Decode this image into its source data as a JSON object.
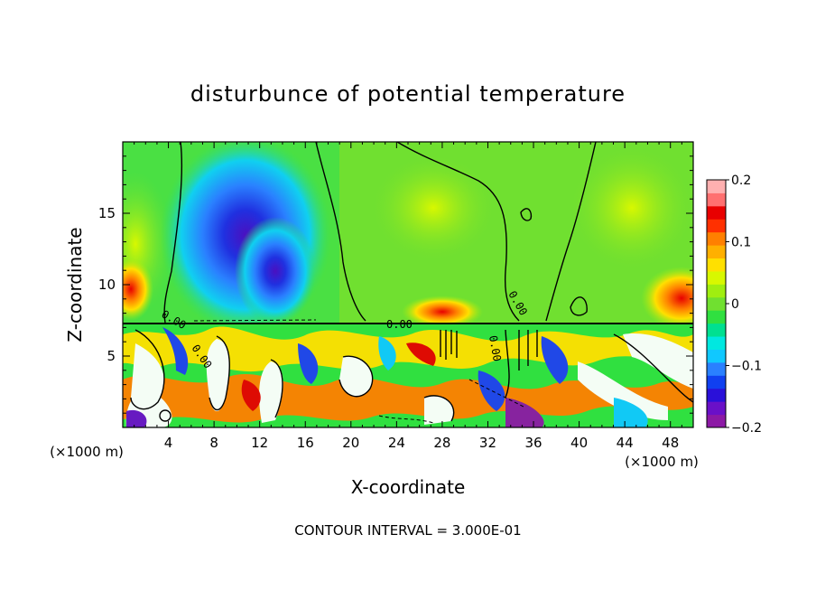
{
  "chart_data": {
    "type": "heatmap",
    "title": "disturbunce of potential temperature",
    "xlabel": "X-coordinate",
    "ylabel": "Z-coordinate",
    "x_units_left": "(×1000 m)",
    "x_units_right": "(×1000 m)",
    "xlim": [
      0,
      50
    ],
    "ylim": [
      0,
      20
    ],
    "x_ticks": [
      4,
      8,
      12,
      16,
      20,
      24,
      28,
      32,
      36,
      40,
      44,
      48
    ],
    "y_ticks": [
      5,
      10,
      15
    ],
    "colorbar": {
      "range": [
        -0.2,
        0.2
      ],
      "tick_values": [
        0.2,
        0.1,
        0,
        -0.1,
        -0.2
      ],
      "tick_labels": [
        "0.2",
        "0.1",
        "0",
        "−0.1",
        "−0.2"
      ],
      "colors": [
        "#8c19a5",
        "#6a10c8",
        "#2a10d9",
        "#1040f0",
        "#2a80ff",
        "#10c8ff",
        "#00e8e0",
        "#00e090",
        "#30e040",
        "#70e030",
        "#a0ee10",
        "#d8f800",
        "#ffe000",
        "#ffb000",
        "#ff8000",
        "#ff3000",
        "#e80000",
        "#ff7070",
        "#ffb0b0"
      ]
    },
    "contour_interval": "CONTOUR INTERVAL = 3.000E-01",
    "contour_labels": [
      "0.00",
      "0.00",
      "0.00",
      "0.00",
      "0.00"
    ]
  }
}
